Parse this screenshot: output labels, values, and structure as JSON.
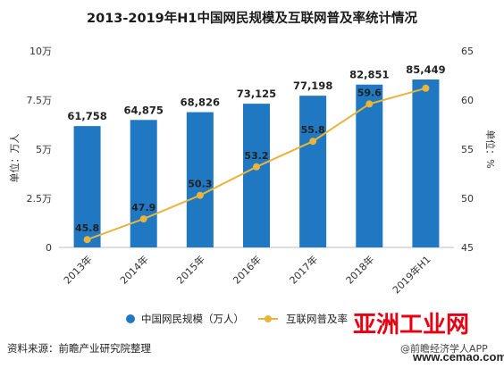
{
  "title": "2013-2019年H1中国网民规模及互联网普及率统计情况",
  "chart_data": {
    "type": "bar+line",
    "categories": [
      "2013年",
      "2014年",
      "2015年",
      "2016年",
      "2017年",
      "2018年",
      "2019年H1"
    ],
    "series": [
      {
        "name": "中国网民规模（万人）",
        "type": "bar",
        "axis": "left",
        "values": [
          61758,
          64875,
          68826,
          73125,
          77198,
          82851,
          85449
        ],
        "labels": [
          "61,758",
          "64,875",
          "68,826",
          "73,125",
          "77,198",
          "82,851",
          "85,449"
        ],
        "color": "#1f78c1"
      },
      {
        "name": "互联网普及率",
        "type": "line",
        "axis": "right",
        "values": [
          45.8,
          47.9,
          50.3,
          53.2,
          55.8,
          59.6,
          61.2
        ],
        "labels": [
          "45.8",
          "47.9",
          "50.3",
          "53.2",
          "55.8",
          "59.6",
          ""
        ],
        "color": "#e7b43c"
      }
    ],
    "y_left": {
      "label": "单位：万人",
      "ylim": [
        0,
        100000
      ],
      "ticks": [
        0,
        25000,
        50000,
        75000,
        100000
      ],
      "tick_labels": [
        "0",
        "2.5万",
        "5万",
        "7.5万",
        "10万"
      ]
    },
    "y_right": {
      "label": "单位：%",
      "ylim": [
        45,
        65
      ],
      "ticks": [
        45,
        50,
        55,
        60,
        65
      ],
      "tick_labels": [
        "45",
        "50",
        "55",
        "60",
        "65"
      ]
    },
    "grid": false,
    "legend_position": "bottom"
  },
  "legend": {
    "items": [
      {
        "label": "中国网民规模（万人）",
        "icon": "circle-marker-icon",
        "color": "#1f78c1"
      },
      {
        "label": "互联网普及率",
        "icon": "line-dot-marker-icon",
        "color": "#e7b43c"
      }
    ]
  },
  "source": "资料来源：前瞻产业研究院整理",
  "brand": "@前瞻经济学人APP",
  "watermark": {
    "logo_text": "亚洲工业网",
    "url": "www.cemao.com"
  }
}
